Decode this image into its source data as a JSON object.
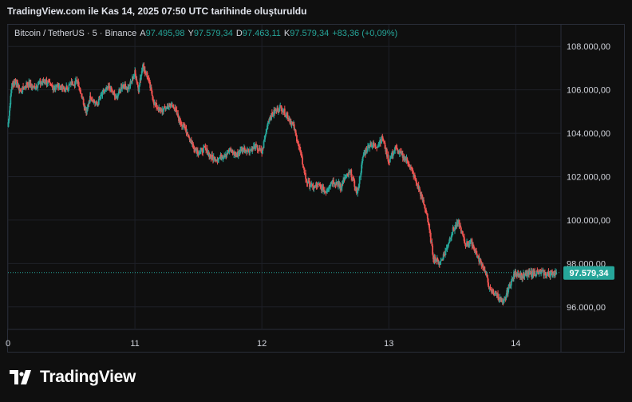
{
  "caption": "TradingView.com ile Kas 14, 2025 07:50 UTC tarihinde oluşturuldu",
  "legend": {
    "symbol": "Bitcoin / TetherUS · 5 · Binance",
    "o_label": "A",
    "o_value": "97.495,98",
    "h_label": "Y",
    "h_value": "97.579,34",
    "l_label": "D",
    "l_value": "97.463,11",
    "c_label": "K",
    "c_value": "97.579,34",
    "change": "+83,36 (+0,09%)"
  },
  "brand": {
    "name": "TradingView",
    "logo_icon": "tradingview-logo-icon"
  },
  "colors": {
    "up": "#26a69a",
    "down": "#ef5350",
    "grid": "#1e2028",
    "price_tag": "#26a69a",
    "axis_text": "#d1d4dc"
  },
  "chart_data": {
    "type": "line",
    "title": "Bitcoin / TetherUS · 5 · Binance",
    "x_ticks": [
      "0",
      "11",
      "12",
      "13",
      "14"
    ],
    "y_ticks": [
      "108.000,00",
      "106.000,00",
      "104.000,00",
      "102.000,00",
      "100.000,00",
      "98.000,00",
      "96.000,00"
    ],
    "y_tick_values": [
      108000,
      106000,
      104000,
      102000,
      100000,
      98000,
      96000
    ],
    "ylim": [
      95000,
      109000
    ],
    "x_tick_values": [
      0,
      1,
      2,
      3,
      4
    ],
    "xlim": [
      0,
      4.35
    ],
    "last_price": 97579.34,
    "last_price_label": "97.579,34",
    "grid": true,
    "series": [
      {
        "x": [
          0,
          0.03,
          0.06,
          0.1,
          0.15,
          0.2,
          0.25,
          0.3,
          0.35,
          0.4,
          0.45,
          0.5,
          0.55,
          0.6,
          0.62,
          0.65,
          0.7,
          0.75,
          0.8,
          0.85,
          0.9,
          0.95,
          1.0,
          1.03,
          1.06,
          1.1,
          1.15,
          1.2,
          1.25,
          1.3,
          1.35,
          1.4,
          1.45,
          1.5,
          1.55,
          1.6,
          1.65,
          1.7,
          1.75,
          1.8,
          1.85,
          1.9,
          1.95,
          2.0,
          2.05,
          2.1,
          2.15,
          2.2,
          2.25,
          2.3,
          2.35,
          2.4,
          2.45,
          2.5,
          2.55,
          2.6,
          2.62,
          2.65,
          2.7,
          2.75,
          2.8,
          2.85,
          2.9,
          2.95,
          3.0,
          3.05,
          3.1,
          3.15,
          3.2,
          3.25,
          3.3,
          3.35,
          3.4,
          3.45,
          3.5,
          3.55,
          3.6,
          3.65,
          3.7,
          3.75,
          3.8,
          3.85,
          3.9,
          3.95,
          4.0,
          4.05,
          4.1,
          4.15,
          4.2,
          4.25,
          4.28,
          4.32
        ],
        "y": [
          104300,
          106200,
          106400,
          105900,
          106300,
          106100,
          106300,
          106400,
          106100,
          106200,
          106000,
          106300,
          106400,
          105300,
          105000,
          105700,
          105300,
          105900,
          106100,
          105600,
          106200,
          106100,
          106800,
          106000,
          107100,
          106600,
          105400,
          105000,
          105200,
          105300,
          104600,
          104200,
          103500,
          103100,
          103300,
          102900,
          102800,
          103000,
          103200,
          103000,
          103300,
          103200,
          103400,
          103100,
          104600,
          105000,
          105200,
          104800,
          104300,
          103200,
          101800,
          101500,
          101600,
          101300,
          101800,
          101700,
          101500,
          101900,
          102200,
          101200,
          103000,
          103500,
          103400,
          103800,
          102700,
          103300,
          103000,
          102700,
          102000,
          101200,
          100300,
          98300,
          98000,
          98600,
          99500,
          99900,
          98900,
          99000,
          98300,
          97800,
          96700,
          96600,
          96100,
          97000,
          97600,
          97400,
          97500,
          97600,
          97579,
          97500,
          97550,
          97579
        ]
      }
    ]
  }
}
